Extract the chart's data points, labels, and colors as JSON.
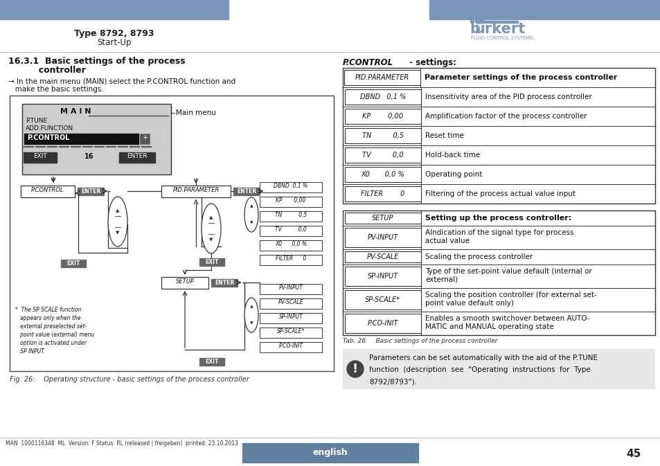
{
  "bg_color": "#ffffff",
  "header_bar_color": "#7B96B8",
  "footer_bar_color": "#6080a0",
  "footer_text": "english",
  "footer_page": "45",
  "footer_mantext": "MAN  1000116348  ML  Version: F Status: RL (released | freigeben)  printed: 23.10.2013",
  "table_rows_pid": [
    [
      "PID.PARAMETER",
      "Parameter settings of the process controller",
      true
    ],
    [
      "DBND   0,1 %",
      "Insensitivity area of the PID process controller",
      false
    ],
    [
      "KP        0,00",
      "Amplification factor of the process controller",
      false
    ],
    [
      "TN          0,5",
      "Reset time",
      false
    ],
    [
      "TV          0,0",
      "Hold-back time",
      false
    ],
    [
      "X0       0,0 %",
      "Operating point",
      false
    ],
    [
      "FILTER        0",
      "Filtering of the process actual value input",
      false
    ]
  ],
  "table_rows_setup": [
    [
      "SETUP",
      "Setting up the process controller:",
      true
    ],
    [
      "PV-INPUT",
      "Alndication of the signal type for process\nactual value",
      false
    ],
    [
      "PV-SCALE",
      "Scaling the process controller",
      false
    ],
    [
      "SP-INPUT",
      "Type of the set-point value default (internal or\nexternal)",
      false
    ],
    [
      "SP-SCALE*",
      "Scaling the position controller (for external set-\npoint value default only)",
      false
    ],
    [
      "P.CO-INIT",
      "Enables a smooth switchover between AUTO-\nMATIC and MANUAL operating state",
      false
    ]
  ],
  "note_bg": "#e8e8e8",
  "note_text_line1": "Parameters can be set automatically with the aid of the ",
  "note_text_italic": "P.TUNE",
  "note_text_line2": "function  (description  see  “Operating  instructions  for  Type",
  "note_text_line3": "8792/8793”)."
}
